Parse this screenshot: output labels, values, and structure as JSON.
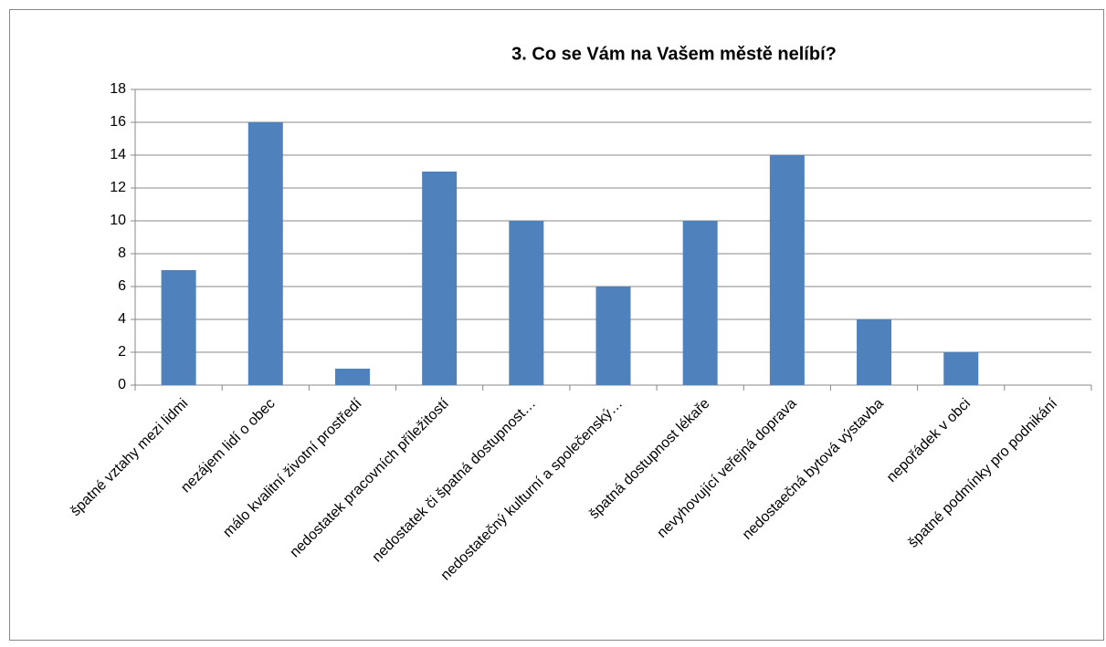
{
  "chart_data": {
    "type": "bar",
    "title": "3. Co se Vám na Vašem městě nelíbí?",
    "categories": [
      "špatné vztahy mezi lidmi",
      "nezájem lidí o obec",
      "málo kvalitní životní prostředí",
      "nedostatek pracovních příležitostí",
      "nedostatek či špatná dostupnost…",
      "nedostatečný kulturní a společenský…",
      "špatná dostupnost lékaře",
      "nevyhovující veřejná doprava",
      "nedostaečná bytová výstavba",
      "nepořádek v obci",
      "špatné podmínky pro podnikání"
    ],
    "values": [
      7,
      16,
      1,
      13,
      10,
      6,
      10,
      14,
      4,
      2,
      0
    ],
    "color": "#4f81bd",
    "ylim": [
      0,
      18
    ],
    "yticks": [
      0,
      2,
      4,
      6,
      8,
      10,
      12,
      14,
      16,
      18
    ],
    "grid": true
  }
}
